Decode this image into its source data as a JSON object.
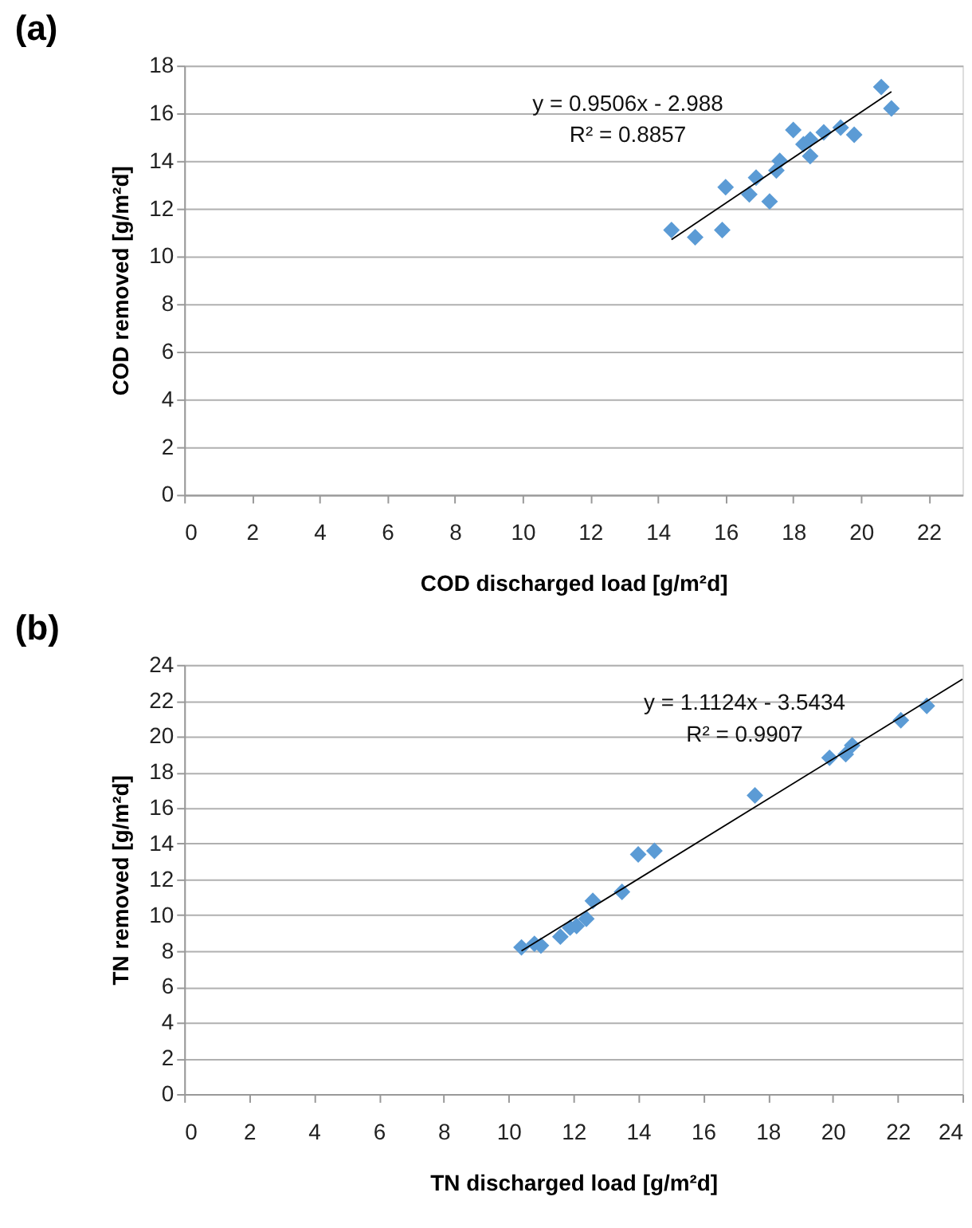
{
  "chart_data": [
    {
      "type": "scatter",
      "title": "(a)",
      "xlabel": "COD  discharged load  [g/m²d]",
      "ylabel": "COD  removed [g/m²d]",
      "xlim": [
        0,
        23
      ],
      "xticks": [
        0,
        2,
        4,
        6,
        8,
        10,
        12,
        14,
        16,
        18,
        20,
        22
      ],
      "ylim": [
        0,
        18
      ],
      "yticks": [
        0,
        2,
        4,
        6,
        8,
        10,
        12,
        14,
        16,
        18
      ],
      "grid": "y",
      "series": [
        {
          "color": "#5b9bd5",
          "marker": "diamond",
          "x": [
            14.4,
            15.1,
            15.9,
            16.0,
            16.7,
            16.9,
            17.3,
            17.5,
            17.6,
            18.0,
            18.3,
            18.5,
            18.5,
            18.9,
            19.4,
            19.8,
            20.6,
            20.9
          ],
          "values": [
            11.1,
            10.8,
            11.1,
            12.9,
            12.6,
            13.3,
            12.3,
            13.6,
            14.0,
            15.3,
            14.7,
            14.9,
            14.2,
            15.2,
            15.4,
            15.1,
            17.1,
            16.2
          ]
        },
        {
          "type": "line",
          "color": "#000000",
          "line_style": "solid",
          "x": [
            14.4,
            20.9
          ],
          "values": [
            10.7,
            16.9
          ]
        }
      ],
      "annotations": [
        "y = 0.9506x - 2.988",
        "R² = 0.8857"
      ]
    },
    {
      "type": "scatter",
      "title": "(b)",
      "xlabel": "TN  discharged load [g/m²d]",
      "ylabel": "TN removed [g/m²d]",
      "xlim": [
        0,
        24
      ],
      "xticks": [
        0,
        2,
        4,
        6,
        8,
        10,
        12,
        14,
        16,
        18,
        20,
        22,
        24
      ],
      "ylim": [
        0,
        24
      ],
      "yticks": [
        0,
        2,
        4,
        6,
        8,
        10,
        12,
        14,
        16,
        18,
        20,
        22,
        24
      ],
      "grid": "y",
      "series": [
        {
          "color": "#5b9bd5",
          "marker": "diamond",
          "x": [
            10.4,
            10.8,
            11.0,
            11.6,
            11.9,
            12.1,
            12.4,
            12.6,
            13.5,
            14.0,
            14.5,
            17.6,
            19.9,
            20.4,
            20.6,
            22.1,
            22.9
          ],
          "values": [
            8.2,
            8.4,
            8.3,
            8.8,
            9.3,
            9.4,
            9.8,
            10.8,
            11.3,
            13.4,
            13.6,
            16.7,
            18.8,
            19.0,
            19.5,
            20.9,
            21.7
          ]
        },
        {
          "type": "line",
          "color": "#000000",
          "line_style": "solid",
          "x": [
            10.4,
            24
          ],
          "values": [
            8.0,
            23.2
          ]
        }
      ],
      "annotations": [
        "y = 1.1124x - 3.5434",
        "R² = 0.9907"
      ]
    }
  ]
}
